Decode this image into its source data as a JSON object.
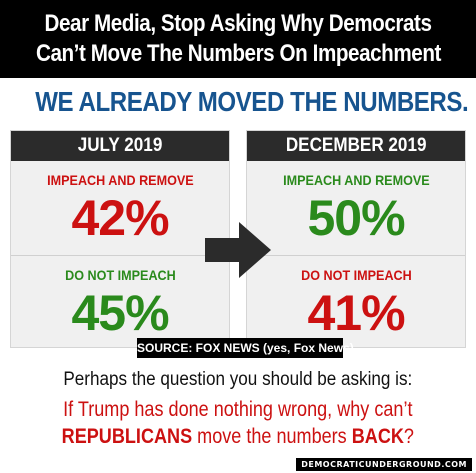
{
  "header": {
    "line1": "Dear Media, Stop Asking Why Democrats",
    "line2": "Can’t Move The Numbers On Impeachment"
  },
  "banner": "WE ALREADY MOVED THE NUMBERS.",
  "panels": [
    {
      "title": "JULY 2019",
      "sections": [
        {
          "label": "IMPEACH AND REMOVE",
          "value": "42%",
          "label_color": "#cc1111",
          "value_color": "#cc1111"
        },
        {
          "label": "DO NOT IMPEACH",
          "value": "45%",
          "label_color": "#2a8a1c",
          "value_color": "#2a8a1c"
        }
      ]
    },
    {
      "title": "DECEMBER 2019",
      "sections": [
        {
          "label": "IMPEACH AND REMOVE",
          "value": "50%",
          "label_color": "#2a8a1c",
          "value_color": "#2a8a1c"
        },
        {
          "label": "DO NOT IMPEACH",
          "value": "41%",
          "label_color": "#cc1111",
          "value_color": "#cc1111"
        }
      ]
    }
  ],
  "arrow_icon": "right-arrow-icon",
  "source": "SOURCE: FOX NEWS (yes, Fox News)",
  "question": {
    "line1": "Perhaps the question you should be asking is:",
    "line2_part1": "If Trump has done nothing wrong, why can’t",
    "line2_emph1": "REPUBLICANS",
    "line2_part2": " move the numbers ",
    "line2_emph2": "BACK",
    "line2_part3": "?"
  },
  "footer": "DEMOCRATICUNDERGROUND.COM"
}
